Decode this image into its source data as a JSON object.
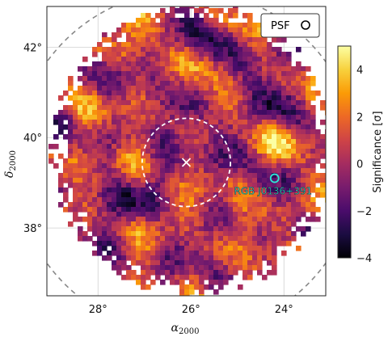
{
  "chart_data": {
    "type": "heatmap",
    "title": "",
    "xlabel": "α",
    "xlabel_sub": "2000",
    "ylabel": "δ",
    "ylabel_sub": "2000",
    "x_ticks": [
      {
        "value": 28,
        "label": "28°"
      },
      {
        "value": 26,
        "label": "26°"
      },
      {
        "value": 24,
        "label": "24°"
      }
    ],
    "y_ticks": [
      {
        "value": 42,
        "label": "42°"
      },
      {
        "value": 40,
        "label": "40°"
      },
      {
        "value": 38,
        "label": "38°"
      }
    ],
    "xlim": [
      29.1,
      23.1
    ],
    "ylim": [
      36.5,
      42.9
    ],
    "x_reversed": true,
    "grid": true,
    "colorbar": {
      "label": "Significance [σ]",
      "range": [
        -4,
        5
      ],
      "ticks": [
        {
          "value": 4,
          "label": "4"
        },
        {
          "value": 2,
          "label": "2"
        },
        {
          "value": 0,
          "label": "0"
        },
        {
          "value": -2,
          "label": "−2"
        },
        {
          "value": -4,
          "label": "−4"
        }
      ],
      "colors": [
        "#000004",
        "#1b0c41",
        "#4a0c6b",
        "#781c6d",
        "#a52c60",
        "#cf4446",
        "#ed6925",
        "#fb9b06",
        "#f7d13d",
        "#fcffa4"
      ]
    },
    "legend": {
      "label": "PSF",
      "placement": "top-right"
    },
    "source": {
      "name": "RGB J0136+391",
      "ra": 24.2,
      "dec": 39.1,
      "color": "#2ee6d6"
    },
    "center_marker": {
      "ra": 26.1,
      "dec": 39.45,
      "symbol": "×"
    },
    "inner_region": {
      "ra": 26.1,
      "dec": 39.45,
      "radius_deg": 0.95,
      "style": "dashed",
      "color": "#ffffff"
    },
    "outer_region": {
      "ra": 26.1,
      "dec": 39.45,
      "radius_deg": 3.7,
      "style": "dashed",
      "color": "#888888"
    },
    "map_extent": {
      "ra_center": 26.0,
      "dec_center": 39.8,
      "radius_deg": 3.0
    },
    "value_range": [
      -4,
      5
    ]
  }
}
